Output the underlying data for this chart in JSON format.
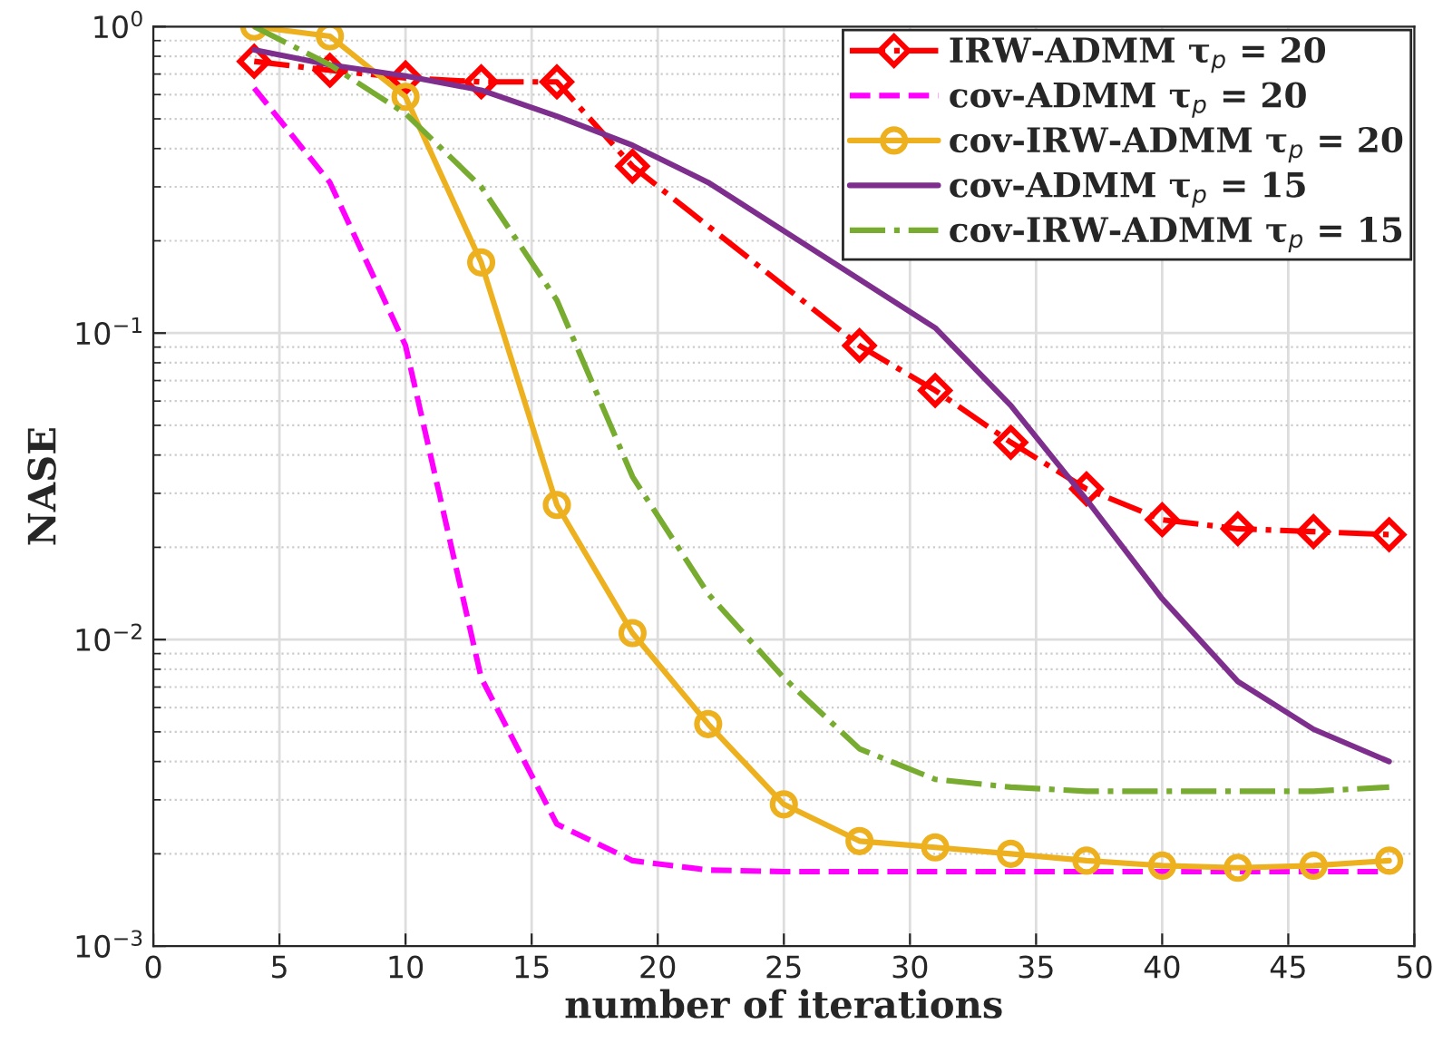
{
  "chart_data": {
    "type": "line",
    "xlabel": "number of iterations",
    "ylabel": "NASE",
    "x": [
      4,
      7,
      10,
      13,
      16,
      19,
      22,
      25,
      28,
      31,
      34,
      37,
      40,
      43,
      46,
      49
    ],
    "xlim": [
      0,
      50
    ],
    "xticks": [
      0,
      5,
      10,
      15,
      20,
      25,
      30,
      35,
      40,
      45,
      50
    ],
    "log": "y",
    "ylim": [
      0.001,
      1
    ],
    "yticks": [
      {
        "value": 0.001,
        "label": "10$^{−3}$"
      },
      {
        "value": 0.01,
        "label": "10$^{−2}$"
      },
      {
        "value": 0.1,
        "label": "10$^{−1}$"
      },
      {
        "value": 1,
        "label": "10$^{0}$"
      }
    ],
    "grid": true,
    "legend": "top right",
    "series": [
      {
        "name": "IRW-ADMM τ$_{p}$ = 20",
        "color": "#ff0000",
        "marker": "diamond",
        "line_style": "dashdot",
        "values": [
          0.77,
          0.72,
          0.68,
          0.66,
          0.66,
          0.35,
          null,
          null,
          0.091,
          0.065,
          0.044,
          0.031,
          0.0246,
          0.023,
          0.0225,
          0.022
        ]
      },
      {
        "name": "cov-ADMM τ$_{p}$ = 20",
        "color": "#ff00ff",
        "marker": "none",
        "line_style": "dashed",
        "values": [
          0.63,
          0.31,
          0.091,
          0.0075,
          0.0025,
          0.0019,
          0.00177,
          0.00175,
          0.00175,
          0.00175,
          0.00175,
          0.00175,
          0.00175,
          0.00175,
          0.00175,
          0.00175
        ]
      },
      {
        "name": "cov-IRW-ADMM τ$_{p}$ = 20",
        "color": "#edb120",
        "marker": "circle",
        "line_style": "solid",
        "values": [
          1.0,
          0.93,
          0.59,
          0.17,
          0.0275,
          0.0105,
          0.0053,
          0.0029,
          0.0022,
          0.0021,
          0.002,
          0.0019,
          0.00183,
          0.0018,
          0.00183,
          0.0019
        ]
      },
      {
        "name": "cov-ADMM τ$_{p}$ = 15",
        "color": "#7e2f8e",
        "marker": "none",
        "line_style": "solid",
        "values": [
          0.84,
          0.75,
          0.69,
          0.62,
          0.51,
          0.41,
          0.31,
          null,
          null,
          0.104,
          0.058,
          0.0286,
          0.0136,
          0.0073,
          0.0051,
          0.004
        ]
      },
      {
        "name": "cov-IRW-ADMM τ$_{p}$ = 15",
        "color": "#77ac30",
        "marker": "none",
        "line_style": "dashdot",
        "values": [
          1.0,
          0.75,
          0.52,
          0.3,
          0.128,
          0.034,
          0.0141,
          0.0075,
          0.0044,
          0.0035,
          0.0033,
          0.0032,
          0.0032,
          0.0032,
          0.0032,
          0.0033
        ]
      }
    ]
  }
}
